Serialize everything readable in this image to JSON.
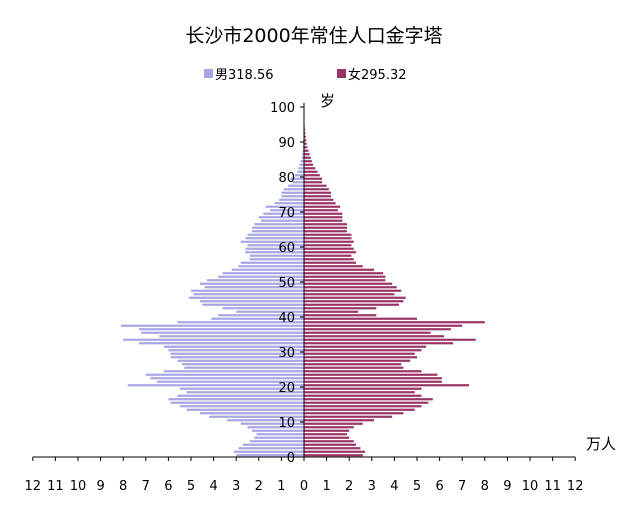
{
  "chart_data": {
    "type": "bar",
    "orientation": "horizontal-population-pyramid",
    "title": "长沙市2000年常住人口金字塔",
    "ylabel": "岁",
    "xlabel": "万人",
    "x_tick_labels": [
      "12",
      "11",
      "10",
      "9",
      "8",
      "7",
      "6",
      "5",
      "4",
      "3",
      "2",
      "1",
      "0",
      "1",
      "2",
      "3",
      "4",
      "5",
      "6",
      "7",
      "8",
      "9",
      "10",
      "11",
      "12"
    ],
    "y_tick_labels": [
      "0",
      "10",
      "20",
      "30",
      "40",
      "50",
      "60",
      "70",
      "80",
      "90",
      "100"
    ],
    "xlim": [
      -12,
      12
    ],
    "ylim": [
      0,
      100
    ],
    "legend_position": "top",
    "series": [
      {
        "name": "男318.56",
        "color": "#a6a6e6",
        "values": [
          3.0,
          3.1,
          2.9,
          2.7,
          2.4,
          2.2,
          2.1,
          2.3,
          2.5,
          2.8,
          3.4,
          4.2,
          4.6,
          5.2,
          5.5,
          5.9,
          6.0,
          5.6,
          5.2,
          5.5,
          7.8,
          6.5,
          6.8,
          7.0,
          6.2,
          5.3,
          5.4,
          5.6,
          5.9,
          5.9,
          6.0,
          6.2,
          7.3,
          8.0,
          6.4,
          7.2,
          7.3,
          8.1,
          5.6,
          4.1,
          3.8,
          3.0,
          3.6,
          4.5,
          4.6,
          5.1,
          4.9,
          5.0,
          4.4,
          4.6,
          4.3,
          3.8,
          3.6,
          3.2,
          2.9,
          2.8,
          2.4,
          2.4,
          2.6,
          2.6,
          2.5,
          2.8,
          2.6,
          2.5,
          2.3,
          2.3,
          2.2,
          1.9,
          2.0,
          1.8,
          1.5,
          1.7,
          1.3,
          1.1,
          1.0,
          1.0,
          0.9,
          0.7,
          0.5,
          0.6,
          0.4,
          0.3,
          0.25,
          0.2,
          0.15,
          0.1,
          0.08,
          0.06,
          0.05,
          0.04,
          0.03,
          0.02,
          0.01,
          0.01,
          0.01,
          0.0,
          0.0,
          0.0,
          0.0,
          0.0,
          0.0
        ]
      },
      {
        "name": "女295.32",
        "color": "#993366",
        "values": [
          2.6,
          2.7,
          2.5,
          2.3,
          2.2,
          2.0,
          1.9,
          2.0,
          2.2,
          2.6,
          3.1,
          3.9,
          4.4,
          4.9,
          5.2,
          5.5,
          5.7,
          5.2,
          4.9,
          5.2,
          7.3,
          6.1,
          6.1,
          5.9,
          5.2,
          4.4,
          4.3,
          4.7,
          5.0,
          4.9,
          5.2,
          5.4,
          6.6,
          7.6,
          6.2,
          5.6,
          6.5,
          7.0,
          8.0,
          5.0,
          3.2,
          2.4,
          3.2,
          4.2,
          4.4,
          4.5,
          4.0,
          4.3,
          4.1,
          3.9,
          3.6,
          3.6,
          3.5,
          3.1,
          2.6,
          2.3,
          2.2,
          2.1,
          2.3,
          2.2,
          2.1,
          2.2,
          2.1,
          2.1,
          1.9,
          1.9,
          1.9,
          1.7,
          1.7,
          1.7,
          1.5,
          1.6,
          1.4,
          1.3,
          1.2,
          1.2,
          1.1,
          1.0,
          0.8,
          0.8,
          0.7,
          0.6,
          0.5,
          0.4,
          0.35,
          0.3,
          0.25,
          0.2,
          0.15,
          0.12,
          0.1,
          0.08,
          0.06,
          0.04,
          0.03,
          0.02,
          0.01,
          0.01,
          0.01,
          0.0,
          0.0
        ]
      }
    ]
  }
}
